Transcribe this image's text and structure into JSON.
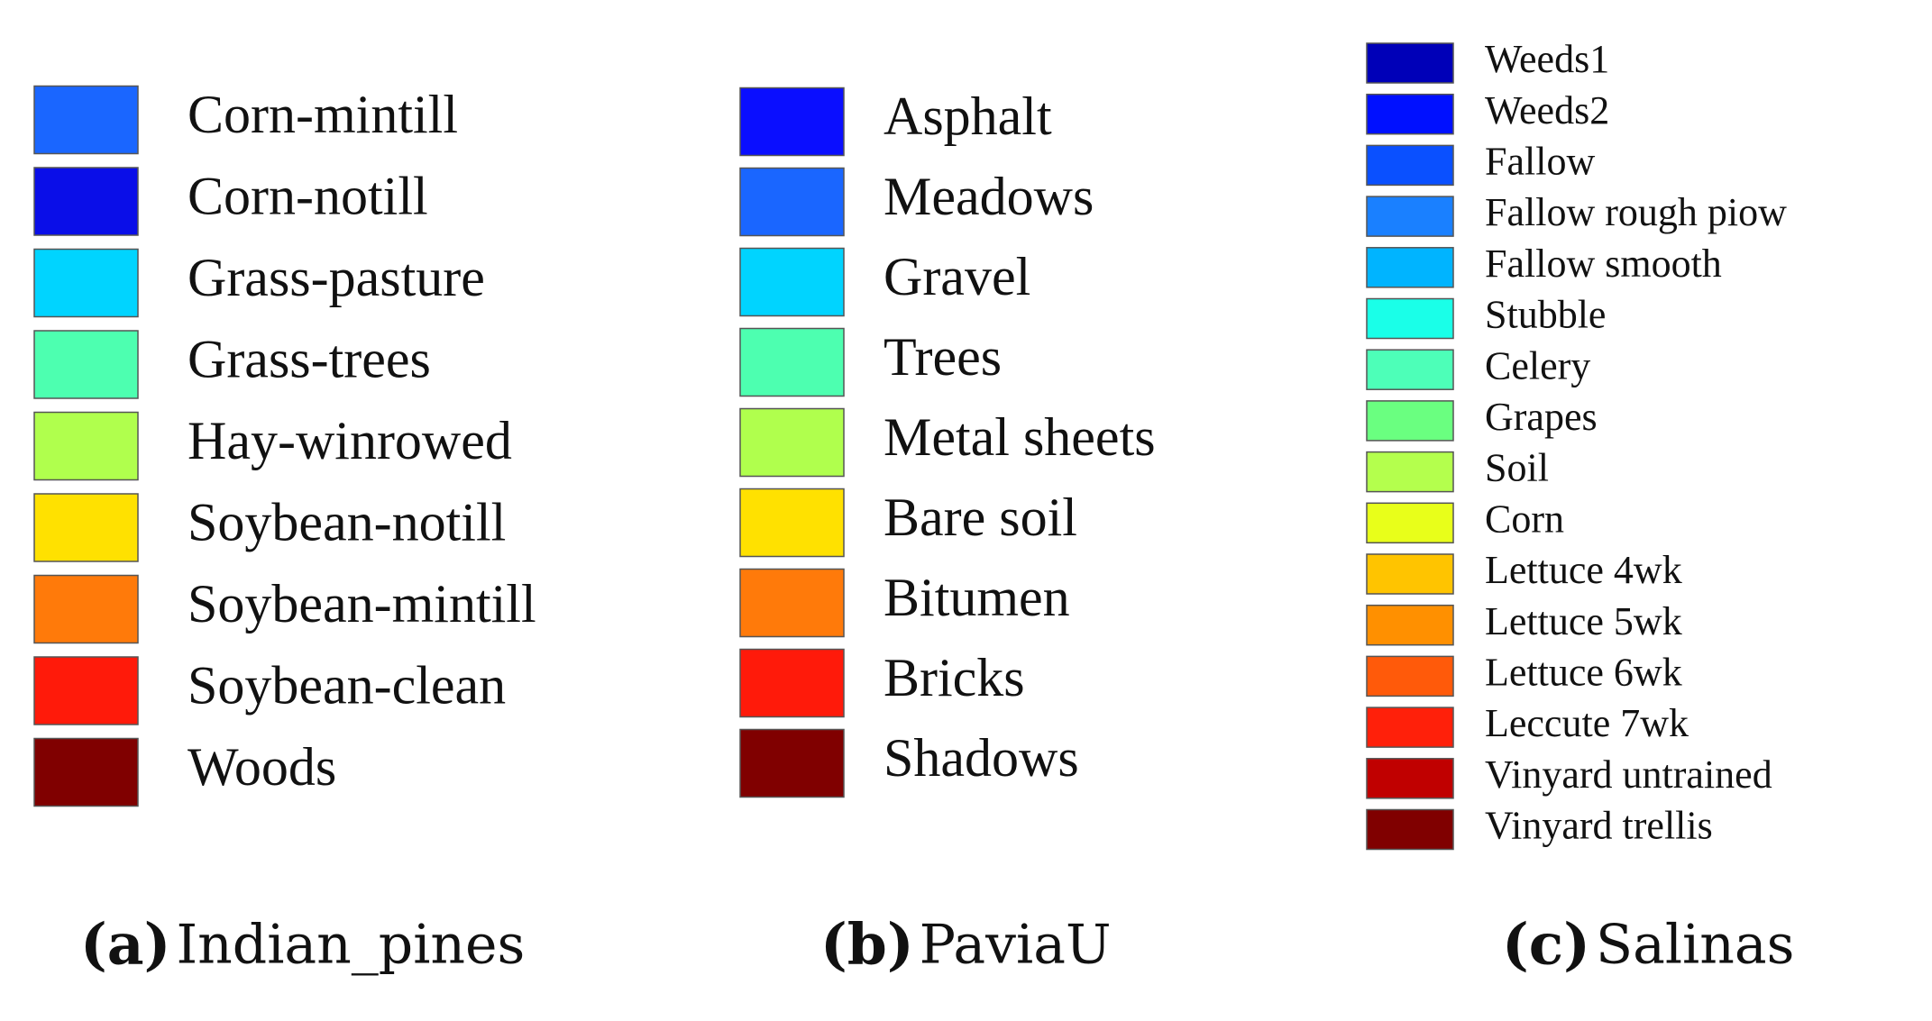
{
  "panels": [
    {
      "tag": "(a)",
      "name": "Indian_pines",
      "items": [
        {
          "label": "Corn-mintill",
          "color": "#1a66ff"
        },
        {
          "label": "Corn-notill",
          "color": "#0a0ee8"
        },
        {
          "label": "Grass-pasture",
          "color": "#00d4ff"
        },
        {
          "label": "Grass-trees",
          "color": "#4dffb0"
        },
        {
          "label": "Hay-winrowed",
          "color": "#b0ff4d"
        },
        {
          "label": "Soybean-notill",
          "color": "#ffe100"
        },
        {
          "label": "Soybean-mintill",
          "color": "#ff7a0a"
        },
        {
          "label": "Soybean-clean",
          "color": "#ff1a0a"
        },
        {
          "label": "Woods",
          "color": "#800000"
        }
      ]
    },
    {
      "tag": "(b)",
      "name": "PaviaU",
      "items": [
        {
          "label": "Asphalt",
          "color": "#0a0eff"
        },
        {
          "label": "Meadows",
          "color": "#1a66ff"
        },
        {
          "label": "Gravel",
          "color": "#00d4ff"
        },
        {
          "label": "Trees",
          "color": "#4dffb0"
        },
        {
          "label": "Metal sheets",
          "color": "#b0ff4d"
        },
        {
          "label": "Bare soil",
          "color": "#ffe100"
        },
        {
          "label": "Bitumen",
          "color": "#ff7a0a"
        },
        {
          "label": "Bricks",
          "color": "#ff1a0a"
        },
        {
          "label": "Shadows",
          "color": "#800000"
        }
      ]
    },
    {
      "tag": "(c)",
      "name": "Salinas",
      "items": [
        {
          "label": "Weeds1",
          "color": "#0000b8"
        },
        {
          "label": "Weeds2",
          "color": "#0010ff"
        },
        {
          "label": "Fallow",
          "color": "#0a50ff"
        },
        {
          "label": "Fallow rough piow",
          "color": "#1a80ff"
        },
        {
          "label": "Fallow smooth",
          "color": "#00b4ff"
        },
        {
          "label": "Stubble",
          "color": "#1affe8"
        },
        {
          "label": "Celery",
          "color": "#4dffb8"
        },
        {
          "label": "Grapes",
          "color": "#6aff80"
        },
        {
          "label": "Soil",
          "color": "#b4ff4d"
        },
        {
          "label": "Corn",
          "color": "#e8ff1a"
        },
        {
          "label": "Lettuce 4wk",
          "color": "#ffc400"
        },
        {
          "label": "Lettuce 5wk",
          "color": "#ff9000"
        },
        {
          "label": "Lettuce 6wk",
          "color": "#ff5a0a"
        },
        {
          "label": "Leccute 7wk",
          "color": "#ff200a"
        },
        {
          "label": "Vinyard untrained",
          "color": "#c00000"
        },
        {
          "label": "Vinyard trellis",
          "color": "#800000"
        }
      ]
    }
  ]
}
